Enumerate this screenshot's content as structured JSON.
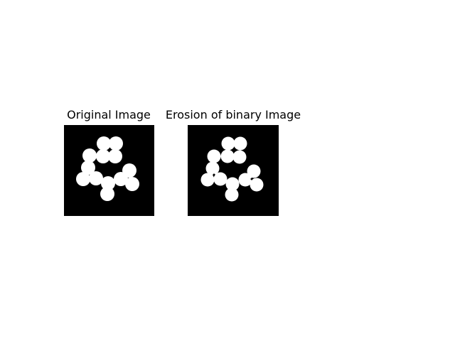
{
  "figure": {
    "panels": [
      {
        "title": "Original Image",
        "background_color": "#000000",
        "foreground_color": "#ffffff"
      },
      {
        "title": "Erosion of binary Image",
        "background_color": "#000000",
        "foreground_color": "#ffffff"
      }
    ]
  }
}
